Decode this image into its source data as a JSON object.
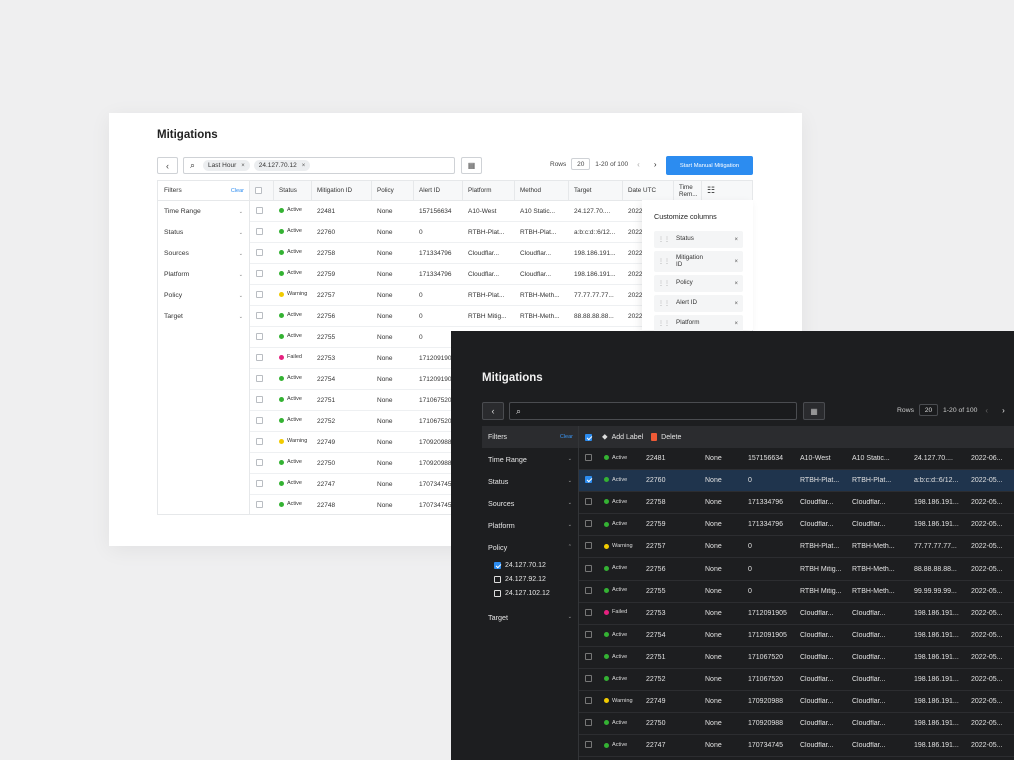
{
  "colors": {
    "accent": "#2c8cf0",
    "active": "#34b233",
    "warning": "#f1cb00",
    "failed": "#e5217f",
    "delete": "#ee5a36"
  },
  "light": {
    "title": "Mitigations",
    "chips": [
      {
        "label": "Last Hour"
      },
      {
        "label": "24.127.70.12"
      }
    ],
    "rows_label": "Rows",
    "rows_value": "20",
    "range": "1-20 of 100",
    "start_button": "Start Manual Mitigation",
    "filters": {
      "title": "Filters",
      "clear": "Clear",
      "items": [
        "Time Range",
        "Status",
        "Sources",
        "Platform",
        "Policy",
        "Target"
      ]
    },
    "columns": [
      "Status",
      "Mitigation ID",
      "Policy",
      "Alert ID",
      "Platform",
      "Method",
      "Target",
      "Date UTC",
      "Time Rem..."
    ],
    "rows": [
      {
        "status": "Active",
        "id": "22481",
        "policy": "None",
        "alert": "157156634",
        "platform": "A10-West",
        "method": "A10 Static...",
        "target": "24.127.70....",
        "date": "2022-0"
      },
      {
        "status": "Active",
        "id": "22760",
        "policy": "None",
        "alert": "0",
        "platform": "RTBH-Plat...",
        "method": "RTBH-Plat...",
        "target": "a:b:c:d::6/12...",
        "date": "2022-0"
      },
      {
        "status": "Active",
        "id": "22758",
        "policy": "None",
        "alert": "171334796",
        "platform": "Cloudflar...",
        "method": "Cloudflar...",
        "target": "198.186.191...",
        "date": "2022-0"
      },
      {
        "status": "Active",
        "id": "22759",
        "policy": "None",
        "alert": "171334796",
        "platform": "Cloudflar...",
        "method": "Cloudflar...",
        "target": "198.186.191...",
        "date": "2022-0"
      },
      {
        "status": "Warning",
        "id": "22757",
        "policy": "None",
        "alert": "0",
        "platform": "RTBH-Plat...",
        "method": "RTBH-Meth...",
        "target": "77.77.77.77...",
        "date": "2022-0"
      },
      {
        "status": "Active",
        "id": "22756",
        "policy": "None",
        "alert": "0",
        "platform": "RTBH Mitig...",
        "method": "RTBH-Meth...",
        "target": "88.88.88.88...",
        "date": "2022-0"
      },
      {
        "status": "Active",
        "id": "22755",
        "policy": "None",
        "alert": "0",
        "platform": "",
        "method": "",
        "target": "",
        "date": ""
      },
      {
        "status": "Failed",
        "id": "22753",
        "policy": "None",
        "alert": "1712091905",
        "platform": "",
        "method": "",
        "target": "",
        "date": ""
      },
      {
        "status": "Active",
        "id": "22754",
        "policy": "None",
        "alert": "1712091905",
        "platform": "",
        "method": "",
        "target": "",
        "date": ""
      },
      {
        "status": "Active",
        "id": "22751",
        "policy": "None",
        "alert": "171067520",
        "platform": "",
        "method": "",
        "target": "",
        "date": ""
      },
      {
        "status": "Active",
        "id": "22752",
        "policy": "None",
        "alert": "171067520",
        "platform": "",
        "method": "",
        "target": "",
        "date": ""
      },
      {
        "status": "Warning",
        "id": "22749",
        "policy": "None",
        "alert": "170920988",
        "platform": "",
        "method": "",
        "target": "",
        "date": ""
      },
      {
        "status": "Active",
        "id": "22750",
        "policy": "None",
        "alert": "170920988",
        "platform": "",
        "method": "",
        "target": "",
        "date": ""
      },
      {
        "status": "Active",
        "id": "22747",
        "policy": "None",
        "alert": "170734745",
        "platform": "",
        "method": "",
        "target": "",
        "date": ""
      },
      {
        "status": "Active",
        "id": "22748",
        "policy": "None",
        "alert": "170734745",
        "platform": "",
        "method": "",
        "target": "",
        "date": ""
      }
    ],
    "customize": {
      "title": "Customize columns",
      "items": [
        "Status",
        "Mitigation ID",
        "Policy",
        "Alert ID",
        "Platform"
      ]
    }
  },
  "dark": {
    "title": "Mitigations",
    "rows_label": "Rows",
    "rows_value": "20",
    "range": "1-20 of 100",
    "add_label": "Add Label",
    "delete": "Delete",
    "filters": {
      "title": "Filters",
      "clear": "Clear",
      "before": [
        "Time Range",
        "Status",
        "Sources",
        "Platform",
        "Policy"
      ],
      "options": [
        {
          "label": "24.127.70.12",
          "checked": true
        },
        {
          "label": "24.127.92.12",
          "checked": false
        },
        {
          "label": "24.127.102.12",
          "checked": false
        }
      ],
      "after": [
        "Target"
      ]
    },
    "rows": [
      {
        "status": "Active",
        "id": "22481",
        "policy": "None",
        "alert": "157156634",
        "platform": "A10-West",
        "method": "A10 Static...",
        "target": "24.127.70....",
        "date": "2022-06...",
        "selected": false
      },
      {
        "status": "Active",
        "id": "22760",
        "policy": "None",
        "alert": "0",
        "platform": "RTBH-Plat...",
        "method": "RTBH-Plat...",
        "target": "a:b:c:d::6/12...",
        "date": "2022-05...",
        "selected": true
      },
      {
        "status": "Active",
        "id": "22758",
        "policy": "None",
        "alert": "171334796",
        "platform": "Cloudflar...",
        "method": "Cloudflar...",
        "target": "198.186.191...",
        "date": "2022-05...",
        "selected": false
      },
      {
        "status": "Active",
        "id": "22759",
        "policy": "None",
        "alert": "171334796",
        "platform": "Cloudflar...",
        "method": "Cloudflar...",
        "target": "198.186.191...",
        "date": "2022-05...",
        "selected": false
      },
      {
        "status": "Warning",
        "id": "22757",
        "policy": "None",
        "alert": "0",
        "platform": "RTBH-Plat...",
        "method": "RTBH-Meth...",
        "target": "77.77.77.77...",
        "date": "2022-05...",
        "selected": false
      },
      {
        "status": "Active",
        "id": "22756",
        "policy": "None",
        "alert": "0",
        "platform": "RTBH Mitig...",
        "method": "RTBH-Meth...",
        "target": "88.88.88.88...",
        "date": "2022-05...",
        "selected": false
      },
      {
        "status": "Active",
        "id": "22755",
        "policy": "None",
        "alert": "0",
        "platform": "RTBH Mitig...",
        "method": "RTBH-Meth...",
        "target": "99.99.99.99...",
        "date": "2022-05...",
        "selected": false
      },
      {
        "status": "Failed",
        "id": "22753",
        "policy": "None",
        "alert": "1712091905",
        "platform": "Cloudflar...",
        "method": "Cloudflar...",
        "target": "198.186.191...",
        "date": "2022-05...",
        "selected": false
      },
      {
        "status": "Active",
        "id": "22754",
        "policy": "None",
        "alert": "1712091905",
        "platform": "Cloudflar...",
        "method": "Cloudflar...",
        "target": "198.186.191...",
        "date": "2022-05...",
        "selected": false
      },
      {
        "status": "Active",
        "id": "22751",
        "policy": "None",
        "alert": "171067520",
        "platform": "Cloudflar...",
        "method": "Cloudflar...",
        "target": "198.186.191...",
        "date": "2022-05...",
        "selected": false
      },
      {
        "status": "Active",
        "id": "22752",
        "policy": "None",
        "alert": "171067520",
        "platform": "Cloudflar...",
        "method": "Cloudflar...",
        "target": "198.186.191...",
        "date": "2022-05...",
        "selected": false
      },
      {
        "status": "Warning",
        "id": "22749",
        "policy": "None",
        "alert": "170920988",
        "platform": "Cloudflar...",
        "method": "Cloudflar...",
        "target": "198.186.191...",
        "date": "2022-05...",
        "selected": false
      },
      {
        "status": "Active",
        "id": "22750",
        "policy": "None",
        "alert": "170920988",
        "platform": "Cloudflar...",
        "method": "Cloudflar...",
        "target": "198.186.191...",
        "date": "2022-05...",
        "selected": false
      },
      {
        "status": "Active",
        "id": "22747",
        "policy": "None",
        "alert": "170734745",
        "platform": "Cloudflar...",
        "method": "Cloudflar...",
        "target": "198.186.191...",
        "date": "2022-05...",
        "selected": false
      }
    ]
  }
}
